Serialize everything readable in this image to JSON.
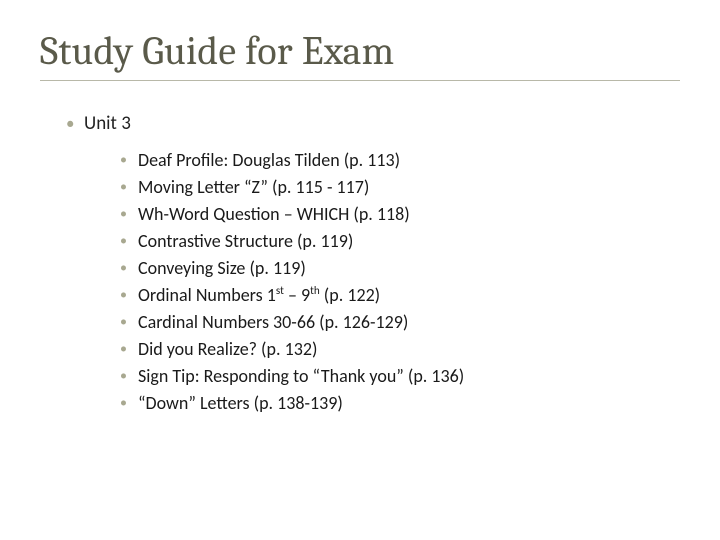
{
  "slide": {
    "title": "Study Guide for Exam",
    "title_color": "#5a5a4a",
    "underline_color": "#b8b8a8",
    "background_color": "#ffffff",
    "bullet_color": "#a8a890",
    "text_color": "#1a1a1a",
    "font_title": "Cambria",
    "font_body": "Calibri",
    "title_fontsize": 40,
    "level1_fontsize": 19,
    "level2_fontsize": 18,
    "level1": {
      "label": "Unit 3",
      "items": [
        {
          "text": "Deaf Profile: Douglas Tilden (p. 113)"
        },
        {
          "text": "Moving Letter “Z” (p. 115 - 117)"
        },
        {
          "text": "Wh-Word Question – WHICH (p. 118)"
        },
        {
          "text": "Contrastive Structure (p. 119)"
        },
        {
          "text": "Conveying Size (p. 119)"
        },
        {
          "pre": "Ordinal Numbers 1",
          "sup1": "st",
          "mid": " – 9",
          "sup2": "th",
          "post": " (p. 122)"
        },
        {
          "text": "Cardinal Numbers 30-66 (p. 126-129)"
        },
        {
          "text": "Did you Realize? (p. 132)"
        },
        {
          "text": "Sign Tip: Responding to “Thank you” (p. 136)"
        },
        {
          "text": "“Down” Letters (p. 138-139)"
        }
      ]
    }
  }
}
